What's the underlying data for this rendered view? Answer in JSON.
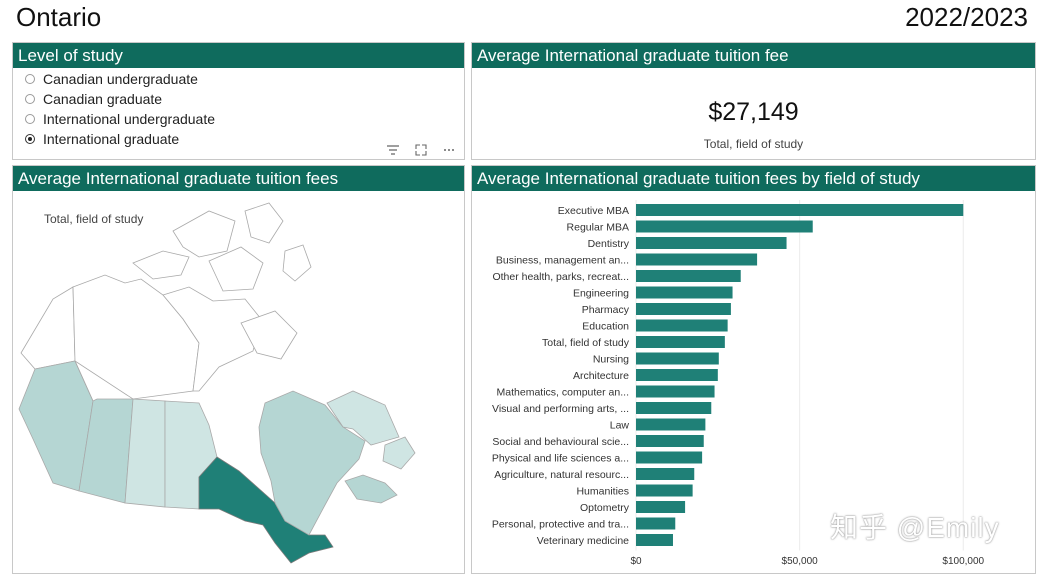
{
  "header": {
    "title": "Ontario",
    "year": "2022/2023"
  },
  "slicer": {
    "title": "Level of study",
    "options": [
      {
        "label": "Canadian undergraduate",
        "selected": false
      },
      {
        "label": "Canadian graduate",
        "selected": false
      },
      {
        "label": "International undergraduate",
        "selected": false
      },
      {
        "label": "International graduate",
        "selected": true
      }
    ],
    "tool_icons": [
      "filter-icon",
      "focus-mode-icon",
      "more-options-icon"
    ]
  },
  "kpi": {
    "title": "Average International graduate tuition fee",
    "value": "$27,149",
    "subtitle": "Total, field of study"
  },
  "map": {
    "title": "Average International graduate tuition fees",
    "subtitle": "Total, field of study",
    "colors": {
      "highlight": "#1f8077",
      "light": "#b5d6d3",
      "lighter": "#cfe5e3",
      "white": "#ffffff"
    }
  },
  "bar_panel": {
    "title": "Average International graduate tuition fees by field of study",
    "bar_color": "#1f8077"
  },
  "chart_data": {
    "type": "bar",
    "orientation": "horizontal",
    "categories": [
      "Executive MBA",
      "Regular MBA",
      "Dentistry",
      "Business, management an...",
      "Other health, parks, recreat...",
      "Engineering",
      "Pharmacy",
      "Education",
      "Total, field of study",
      "Nursing",
      "Architecture",
      "Mathematics, computer an...",
      "Visual and performing arts, ...",
      "Law",
      "Social and behavioural scie...",
      "Physical and life sciences a...",
      "Agriculture, natural resourc...",
      "Humanities",
      "Optometry",
      "Personal, protective and tra...",
      "Veterinary medicine"
    ],
    "values": [
      100000,
      54000,
      46000,
      37000,
      32000,
      29500,
      29000,
      28000,
      27149,
      25300,
      25000,
      24000,
      23000,
      21200,
      20700,
      20200,
      17800,
      17300,
      15000,
      12000,
      11300
    ],
    "xlim": [
      0,
      110000
    ],
    "xticks": [
      {
        "value": 0,
        "label": "$0"
      },
      {
        "value": 50000,
        "label": "$50,000"
      },
      {
        "value": 100000,
        "label": "$100,000"
      }
    ],
    "grid": true
  },
  "watermark": "知乎 @Emily"
}
